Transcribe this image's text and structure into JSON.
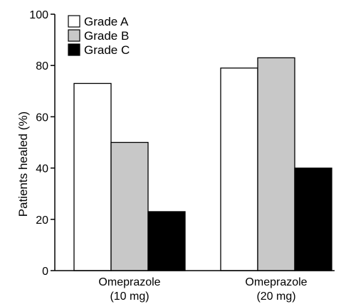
{
  "chart_data": {
    "type": "bar",
    "title": "",
    "xlabel": "",
    "ylabel": "Patients healed (%)",
    "ylim": [
      0,
      100
    ],
    "yticks": [
      0,
      20,
      40,
      60,
      80,
      100
    ],
    "grid": false,
    "legend_position": "top-left",
    "categories": [
      [
        "Omeprazole",
        "(10 mg)"
      ],
      [
        "Omeprazole",
        "(20 mg)"
      ]
    ],
    "series": [
      {
        "name": "Grade A",
        "color": "#ffffff",
        "values": [
          73,
          79
        ]
      },
      {
        "name": "Grade B",
        "color": "#c8c8c8",
        "values": [
          50,
          83
        ]
      },
      {
        "name": "Grade C",
        "color": "#000000",
        "values": [
          23,
          40
        ]
      }
    ]
  }
}
